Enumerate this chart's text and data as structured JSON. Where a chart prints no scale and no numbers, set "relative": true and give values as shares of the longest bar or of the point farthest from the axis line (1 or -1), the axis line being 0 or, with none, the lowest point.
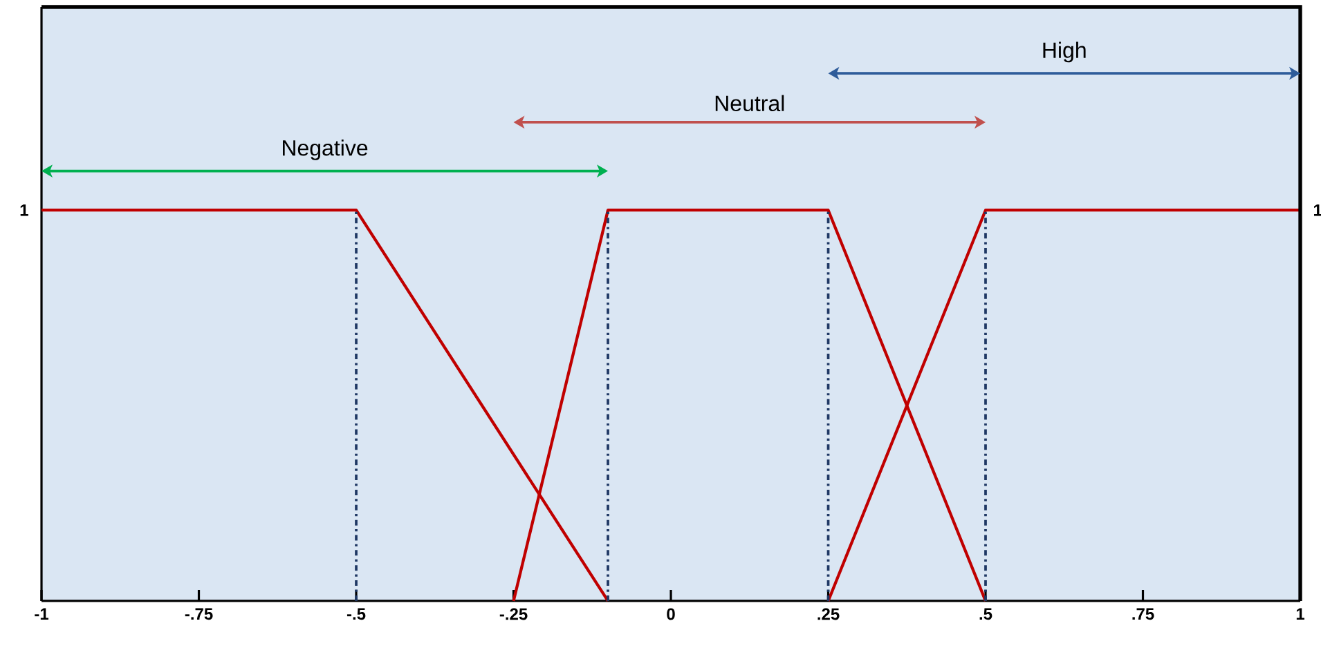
{
  "chart_data": {
    "type": "line",
    "series": [
      {
        "color": "#c00000",
        "x": [
          -1,
          -0.5,
          -0.1
        ],
        "values": [
          1,
          1,
          0
        ]
      },
      {
        "color": "#c00000",
        "x": [
          -0.25,
          -0.1,
          0.25,
          0.5
        ],
        "values": [
          0,
          1,
          1,
          0
        ]
      },
      {
        "color": "#c00000",
        "x": [
          0.25,
          0.5,
          1
        ],
        "values": [
          0,
          1,
          1
        ]
      }
    ],
    "relative": true,
    "annotations": [
      "1",
      "1",
      "Negative",
      "Neutral",
      "High"
    ],
    "xlim": [
      -1,
      1
    ],
    "xticks": [
      {
        "value": -1,
        "label": "-1"
      },
      {
        "value": -0.75,
        "label": "-.75"
      },
      {
        "value": -0.5,
        "label": "-.5"
      },
      {
        "value": -0.25,
        "label": "-.25"
      },
      0,
      {
        "value": 0.25,
        "label": ".25"
      },
      {
        "value": 0.5,
        "label": ".5"
      },
      {
        "value": 0.75,
        "label": ".75"
      },
      1
    ],
    "marker": "none",
    "line_style": "solid",
    "grid": false,
    "ref_lines": [
      {
        "axis": "x",
        "value": -0.5,
        "color": "#1f3864",
        "line_style": "dashdot"
      },
      {
        "axis": "x",
        "value": -0.1,
        "color": "#1f3864",
        "line_style": "dashdot"
      },
      {
        "axis": "x",
        "value": 0.25,
        "color": "#1f3864",
        "line_style": "dashdot"
      },
      {
        "axis": "x",
        "value": 0.5,
        "color": "#1f3864",
        "line_style": "dashdot"
      }
    ]
  }
}
